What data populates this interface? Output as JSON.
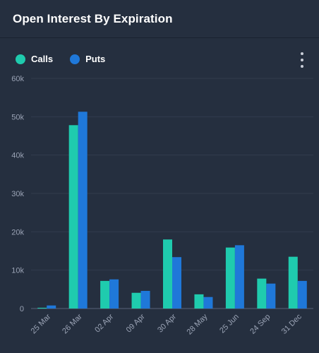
{
  "title": "Open Interest By Expiration",
  "legend": {
    "calls_label": "Calls",
    "puts_label": "Puts"
  },
  "colors": {
    "calls": "#1fcbae",
    "puts": "#1f78d9"
  },
  "menu_icon": "vertical-ellipsis-icon",
  "chart_data": {
    "type": "bar",
    "categories": [
      "25 Mar",
      "26 Mar",
      "02 Apr",
      "09 Apr",
      "30 Apr",
      "28 May",
      "25 Jun",
      "24 Sep",
      "31 Dec"
    ],
    "series": [
      {
        "name": "Calls",
        "values": [
          200,
          47800,
          7200,
          4100,
          18000,
          3700,
          15900,
          7800,
          13500
        ]
      },
      {
        "name": "Puts",
        "values": [
          800,
          51300,
          7600,
          4600,
          13400,
          3000,
          16500,
          6500,
          7200
        ]
      }
    ],
    "title": "Open Interest By Expiration",
    "xlabel": "",
    "ylabel": "",
    "ylim": [
      0,
      60000
    ],
    "yticks": [
      "0",
      "10k",
      "20k",
      "30k",
      "40k",
      "50k",
      "60k"
    ],
    "grid": true,
    "legend_position": "top-left"
  }
}
